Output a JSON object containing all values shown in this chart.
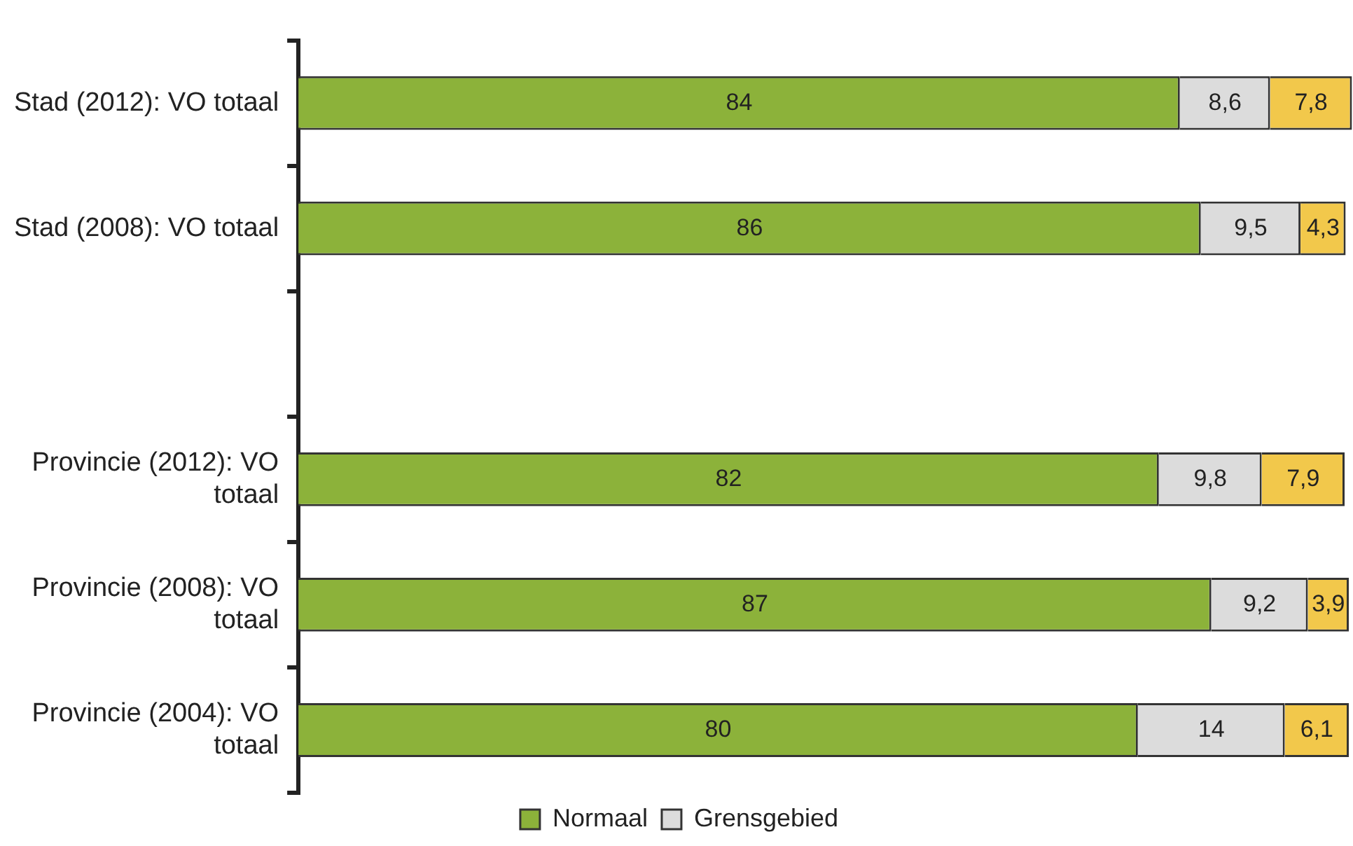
{
  "chart_data": {
    "type": "bar",
    "orientation": "horizontal",
    "stacked": true,
    "categories": [
      "Stad (2012): VO totaal",
      "Stad (2008): VO totaal",
      null,
      "Provincie (2012): VO totaal",
      "Provincie (2008): VO totaal",
      "Provincie (2004): VO totaal"
    ],
    "series": [
      {
        "name": "Normaal",
        "color": "#8cb23a",
        "values": [
          84,
          86,
          null,
          82,
          87,
          80
        ],
        "value_labels": [
          "84",
          "86",
          null,
          "82",
          "87",
          "80"
        ]
      },
      {
        "name": "Grensgebied",
        "color": "#dcdcdc",
        "values": [
          8.6,
          9.5,
          null,
          9.8,
          9.2,
          14
        ],
        "value_labels": [
          "8,6",
          "9,5",
          null,
          "9,8",
          "9,2",
          "14"
        ]
      },
      {
        "color": "#f2c84b",
        "values": [
          7.8,
          4.3,
          null,
          7.9,
          3.9,
          6.1
        ],
        "value_labels": [
          "7,8",
          "4,3",
          null,
          "7,9",
          "3,9",
          "6,1"
        ]
      }
    ],
    "xlim": [
      0,
      100.5
    ],
    "tick_labels": "y",
    "legend": "bottom"
  }
}
